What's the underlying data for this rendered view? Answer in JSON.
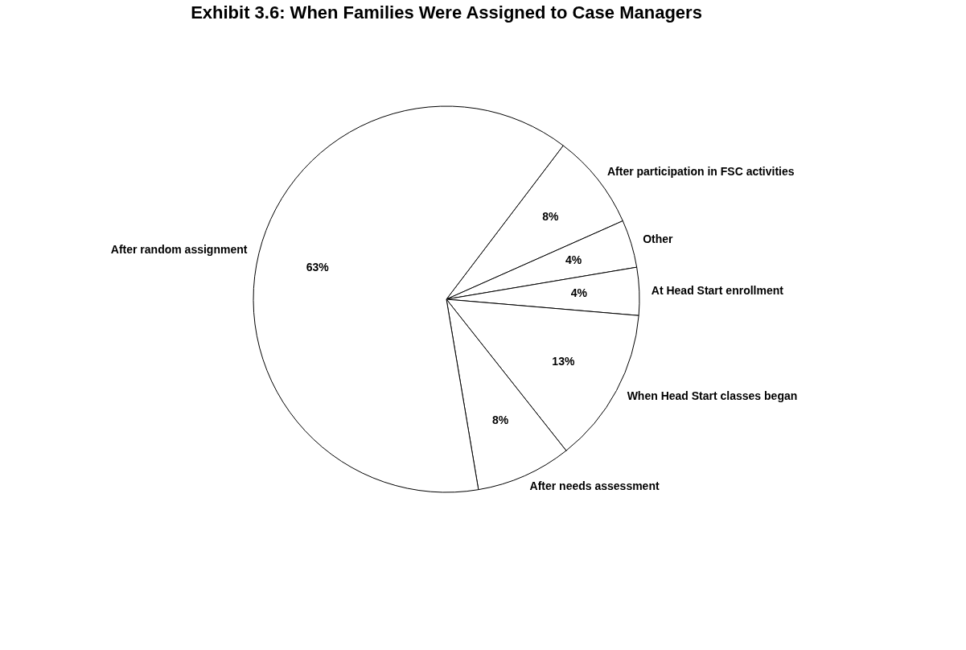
{
  "chart_data": {
    "type": "pie",
    "title": "Exhibit 3.6:  When Families Were Assigned to Case Managers",
    "categories": [
      "After participation in FSC activities",
      "Other",
      "At Head Start enrollment",
      "When Head Start classes began",
      "After needs assessment",
      "After random assignment"
    ],
    "values": [
      8,
      4,
      4,
      13,
      8,
      63
    ],
    "value_labels": [
      "8%",
      "4%",
      "4%",
      "13%",
      "8%",
      "63%"
    ],
    "colors": [
      "#ffffff",
      "#ffffff",
      "#ffffff",
      "#ffffff",
      "#ffffff",
      "#ffffff"
    ],
    "legend": false
  }
}
